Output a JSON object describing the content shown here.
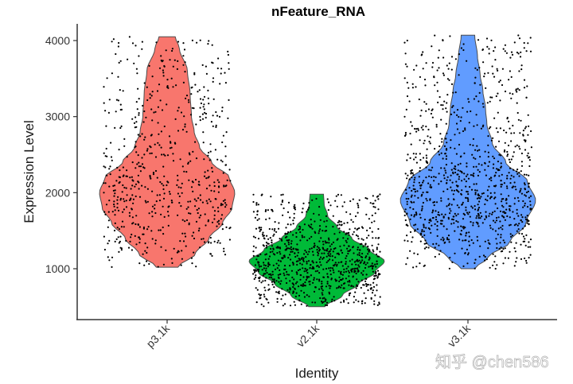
{
  "chart_data": {
    "type": "violin",
    "title": "nFeature_RNA",
    "xlabel": "Identity",
    "ylabel": "Expression Level",
    "categories": [
      "p3.1k",
      "v2.1k",
      "v3.1k"
    ],
    "yticks": [
      1000,
      2000,
      3000,
      4000
    ],
    "ylim": [
      330,
      4200
    ],
    "grid": false,
    "legend": "none",
    "series": [
      {
        "name": "p3.1k",
        "color": "#F8766D",
        "min": 1020,
        "max": 4050,
        "mode": 2000,
        "n_points": 640,
        "density": [
          [
            1020,
            0.16
          ],
          [
            1200,
            0.42
          ],
          [
            1400,
            0.62
          ],
          [
            1600,
            0.82
          ],
          [
            1800,
            0.96
          ],
          [
            2000,
            1.0
          ],
          [
            2200,
            0.92
          ],
          [
            2400,
            0.66
          ],
          [
            2600,
            0.48
          ],
          [
            2800,
            0.4
          ],
          [
            3000,
            0.36
          ],
          [
            3300,
            0.34
          ],
          [
            3600,
            0.3
          ],
          [
            3900,
            0.18
          ],
          [
            4050,
            0.12
          ]
        ]
      },
      {
        "name": "v2.1k",
        "color": "#00BA38",
        "min": 500,
        "max": 1980,
        "mode": 1100,
        "n_points": 900,
        "density": [
          [
            500,
            0.12
          ],
          [
            650,
            0.38
          ],
          [
            800,
            0.62
          ],
          [
            950,
            0.86
          ],
          [
            1100,
            1.0
          ],
          [
            1250,
            0.78
          ],
          [
            1400,
            0.52
          ],
          [
            1550,
            0.3
          ],
          [
            1700,
            0.16
          ],
          [
            1850,
            0.11
          ],
          [
            1980,
            0.1
          ]
        ]
      },
      {
        "name": "v3.1k",
        "color": "#619CFF",
        "min": 1000,
        "max": 4070,
        "mode": 1900,
        "n_points": 1000,
        "density": [
          [
            1000,
            0.1
          ],
          [
            1150,
            0.3
          ],
          [
            1350,
            0.62
          ],
          [
            1600,
            0.86
          ],
          [
            1900,
            1.0
          ],
          [
            2150,
            0.88
          ],
          [
            2400,
            0.56
          ],
          [
            2650,
            0.36
          ],
          [
            2900,
            0.28
          ],
          [
            3100,
            0.26
          ],
          [
            3350,
            0.22
          ],
          [
            3550,
            0.18
          ],
          [
            3800,
            0.14
          ],
          [
            4070,
            0.1
          ]
        ]
      }
    ]
  },
  "watermark": "知乎 @chen586"
}
